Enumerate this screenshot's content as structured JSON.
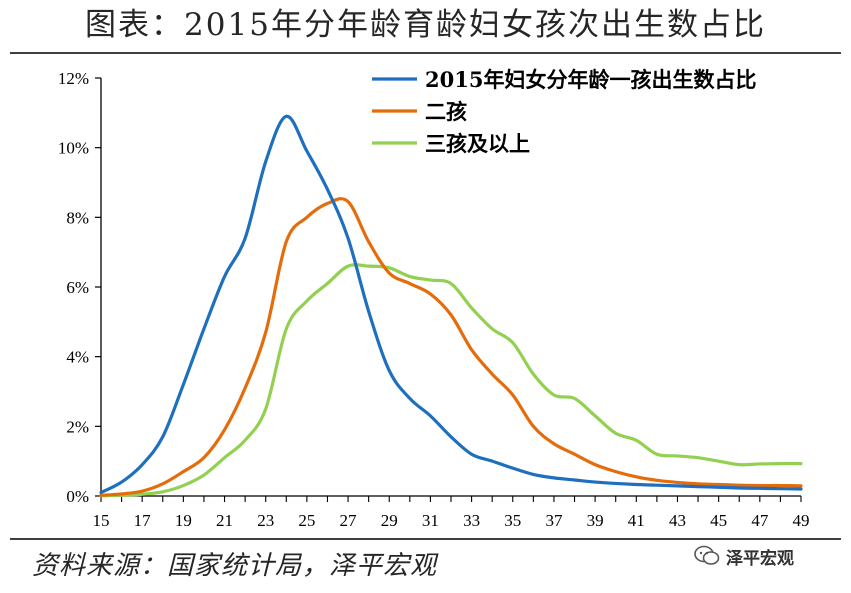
{
  "title": "图表：2015年分年龄育龄妇女孩次出生数占比",
  "source": "资料来源：国家统计局，泽平宏观",
  "watermark": "泽平宏观",
  "colors": {
    "series1": "#1f6fbf",
    "series2": "#e46c0a",
    "series3": "#92d050",
    "axis": "#000000"
  },
  "chart_data": {
    "type": "line",
    "x": [
      15,
      16,
      17,
      18,
      19,
      20,
      21,
      22,
      23,
      24,
      25,
      26,
      27,
      28,
      29,
      30,
      31,
      32,
      33,
      34,
      35,
      36,
      37,
      38,
      39,
      40,
      41,
      42,
      43,
      44,
      45,
      46,
      47,
      48,
      49
    ],
    "x_ticks": [
      "15",
      "17",
      "19",
      "21",
      "23",
      "25",
      "27",
      "29",
      "31",
      "33",
      "35",
      "37",
      "39",
      "41",
      "43",
      "45",
      "47",
      "49"
    ],
    "y_ticks": [
      "0%",
      "2%",
      "4%",
      "6%",
      "8%",
      "10%",
      "12%"
    ],
    "ylim": [
      0,
      12
    ],
    "xlim": [
      15,
      49
    ],
    "y_unit": "%",
    "grid": false,
    "legend_position": "top-right",
    "series": [
      {
        "name": "2015年妇女分年龄一孩出生数占比",
        "color": "#1f6fbf",
        "values": [
          0.1,
          0.4,
          0.9,
          1.7,
          3.2,
          4.8,
          6.3,
          7.4,
          9.6,
          10.9,
          9.9,
          8.8,
          7.4,
          5.3,
          3.6,
          2.8,
          2.3,
          1.7,
          1.2,
          1.0,
          0.8,
          0.62,
          0.52,
          0.46,
          0.4,
          0.36,
          0.33,
          0.31,
          0.29,
          0.27,
          0.25,
          0.23,
          0.22,
          0.21,
          0.2
        ]
      },
      {
        "name": "二孩",
        "color": "#e46c0a",
        "values": [
          0.02,
          0.06,
          0.14,
          0.35,
          0.7,
          1.1,
          1.9,
          3.1,
          4.7,
          7.3,
          8.0,
          8.4,
          8.45,
          7.3,
          6.4,
          6.1,
          5.8,
          5.2,
          4.2,
          3.5,
          2.9,
          2.0,
          1.5,
          1.2,
          0.9,
          0.7,
          0.55,
          0.45,
          0.39,
          0.35,
          0.33,
          0.31,
          0.3,
          0.3,
          0.29
        ]
      },
      {
        "name": "三孩及以上",
        "color": "#92d050",
        "values": [
          0.01,
          0.02,
          0.05,
          0.12,
          0.3,
          0.6,
          1.1,
          1.6,
          2.5,
          4.8,
          5.6,
          6.1,
          6.6,
          6.6,
          6.55,
          6.3,
          6.2,
          6.1,
          5.4,
          4.8,
          4.4,
          3.5,
          2.9,
          2.8,
          2.3,
          1.8,
          1.6,
          1.2,
          1.15,
          1.1,
          1.0,
          0.9,
          0.92,
          0.93,
          0.93
        ]
      }
    ]
  }
}
